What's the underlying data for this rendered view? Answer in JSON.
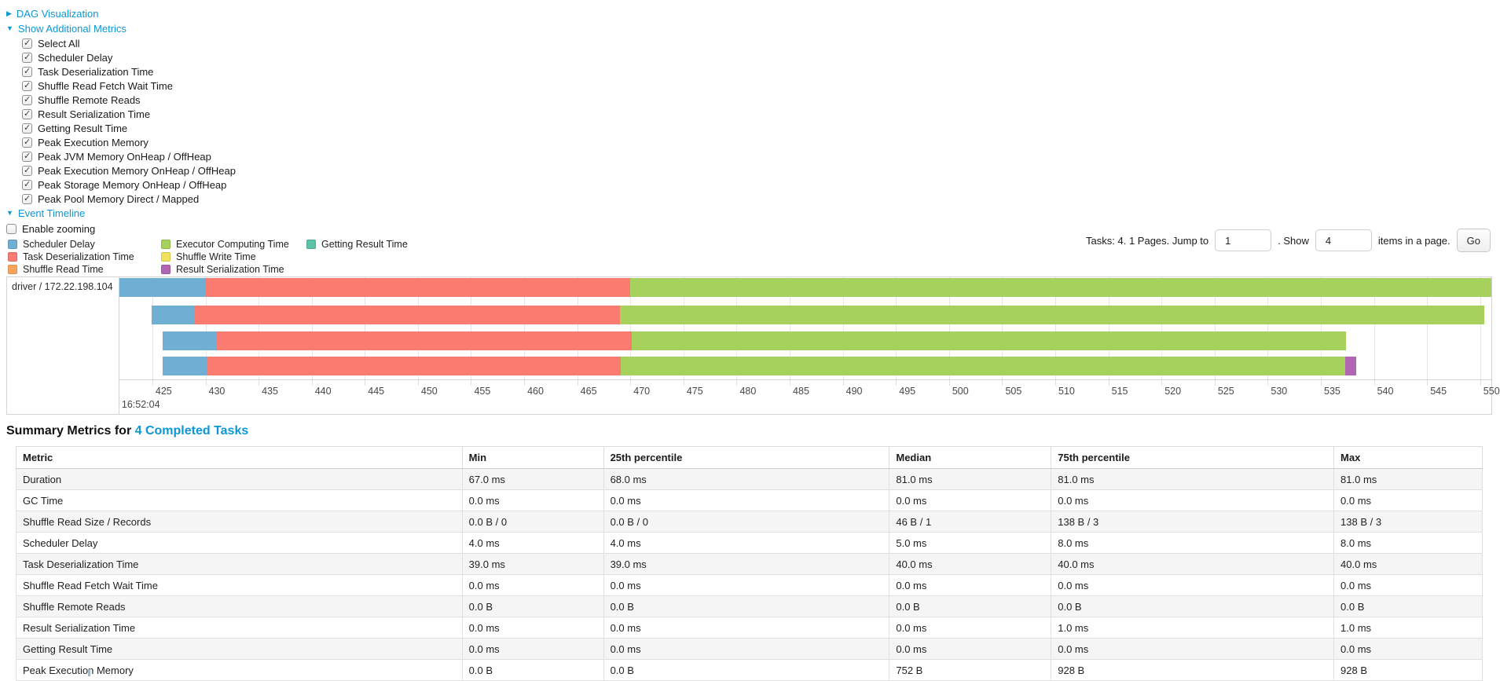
{
  "toggles": {
    "dag": {
      "label": "DAG Visualization",
      "expanded": false
    },
    "metrics": {
      "label": "Show Additional Metrics",
      "expanded": true
    },
    "timeline": {
      "label": "Event Timeline",
      "expanded": true
    }
  },
  "metric_checkboxes": [
    "Select All",
    "Scheduler Delay",
    "Task Deserialization Time",
    "Shuffle Read Fetch Wait Time",
    "Shuffle Remote Reads",
    "Result Serialization Time",
    "Getting Result Time",
    "Peak Execution Memory",
    "Peak JVM Memory OnHeap / OffHeap",
    "Peak Execution Memory OnHeap / OffHeap",
    "Peak Storage Memory OnHeap / OffHeap",
    "Peak Pool Memory Direct / Mapped"
  ],
  "enable_zooming_label": "Enable zooming",
  "legend": {
    "columns": [
      [
        {
          "label": "Scheduler Delay",
          "key": "scheduler_delay"
        },
        {
          "label": "Task Deserialization Time",
          "key": "task_deserialization"
        },
        {
          "label": "Shuffle Read Time",
          "key": "shuffle_read"
        }
      ],
      [
        {
          "label": "Executor Computing Time",
          "key": "executor_computing"
        },
        {
          "label": "Shuffle Write Time",
          "key": "shuffle_write"
        },
        {
          "label": "Result Serialization Time",
          "key": "result_serialization"
        }
      ],
      [
        {
          "label": "Getting Result Time",
          "key": "getting_result"
        }
      ]
    ]
  },
  "pagination": {
    "text_before": "Tasks: 4. 1 Pages. Jump to",
    "jump_value": "1",
    "text_mid": ". Show",
    "show_value": "4",
    "text_after": "items in a page.",
    "go_label": "Go"
  },
  "timeline": {
    "group_label": "driver / 172.22.198.104",
    "start_label": "16:52:04",
    "axis": {
      "min": 421.9,
      "max": 551.05,
      "ticks": [
        425,
        430,
        435,
        440,
        445,
        450,
        455,
        460,
        465,
        470,
        475,
        480,
        485,
        490,
        495,
        500,
        505,
        510,
        515,
        520,
        525,
        530,
        535,
        540,
        545,
        550
      ]
    },
    "tasks": [
      {
        "segments": [
          {
            "type": "scheduler_delay",
            "start": 421.9,
            "end": 430.0
          },
          {
            "type": "task_deserialization",
            "start": 430.0,
            "end": 470.0
          },
          {
            "type": "executor_computing",
            "start": 470.0,
            "end": 551.05
          }
        ]
      },
      {
        "segments": [
          {
            "type": "scheduler_delay",
            "start": 424.9,
            "end": 429.0
          },
          {
            "type": "task_deserialization",
            "start": 429.0,
            "end": 469.0
          },
          {
            "type": "executor_computing",
            "start": 469.0,
            "end": 550.4
          }
        ]
      },
      {
        "segments": [
          {
            "type": "scheduler_delay",
            "start": 426.0,
            "end": 431.0
          },
          {
            "type": "task_deserialization",
            "start": 431.0,
            "end": 470.1
          },
          {
            "type": "executor_computing",
            "start": 470.1,
            "end": 537.4
          }
        ]
      },
      {
        "segments": [
          {
            "type": "scheduler_delay",
            "start": 426.0,
            "end": 430.1
          },
          {
            "type": "task_deserialization",
            "start": 430.1,
            "end": 469.1
          },
          {
            "type": "executor_computing",
            "start": 469.1,
            "end": 537.3
          },
          {
            "type": "result_serialization",
            "start": 537.3,
            "end": 538.3
          }
        ]
      }
    ]
  },
  "summary": {
    "title_prefix": "Summary Metrics for ",
    "title_link": "4 Completed Tasks"
  },
  "table": {
    "headers": [
      "Metric",
      "Min",
      "25th percentile",
      "Median",
      "75th percentile",
      "Max"
    ],
    "rows": [
      {
        "metric": "Duration",
        "values": [
          "67.0 ms",
          "68.0 ms",
          "81.0 ms",
          "81.0 ms",
          "81.0 ms"
        ]
      },
      {
        "metric": "GC Time",
        "values": [
          "0.0 ms",
          "0.0 ms",
          "0.0 ms",
          "0.0 ms",
          "0.0 ms"
        ]
      },
      {
        "metric": "Shuffle Read Size / Records",
        "values": [
          "0.0 B / 0",
          "0.0 B / 0",
          "46 B / 1",
          "138 B / 3",
          "138 B / 3"
        ]
      },
      {
        "metric": "Scheduler Delay",
        "values": [
          "4.0 ms",
          "4.0 ms",
          "5.0 ms",
          "8.0 ms",
          "8.0 ms"
        ]
      },
      {
        "metric": "Task Deserialization Time",
        "values": [
          "39.0 ms",
          "39.0 ms",
          "40.0 ms",
          "40.0 ms",
          "40.0 ms"
        ]
      },
      {
        "metric": "Shuffle Read Fetch Wait Time",
        "values": [
          "0.0 ms",
          "0.0 ms",
          "0.0 ms",
          "0.0 ms",
          "0.0 ms"
        ]
      },
      {
        "metric": "Shuffle Remote Reads",
        "values": [
          "0.0 B",
          "0.0 B",
          "0.0 B",
          "0.0 B",
          "0.0 B"
        ]
      },
      {
        "metric": "Result Serialization Time",
        "values": [
          "0.0 ms",
          "0.0 ms",
          "0.0 ms",
          "1.0 ms",
          "1.0 ms"
        ]
      },
      {
        "metric": "Getting Result Time",
        "values": [
          "0.0 ms",
          "0.0 ms",
          "0.0 ms",
          "0.0 ms",
          "0.0 ms"
        ]
      },
      {
        "metric": "Peak Execution Memory",
        "values": [
          "0.0 B",
          "0.0 B",
          "752 B",
          "928 B",
          "928 B"
        ]
      }
    ]
  },
  "colors": {
    "link": "#0b97d6",
    "scheduler_delay": "#6FAFD4",
    "task_deserialization": "#FA7B6F",
    "shuffle_read": "#F9A45C",
    "executor_computing": "#A6D15C",
    "shuffle_write": "#F2E25B",
    "result_serialization": "#B066B3",
    "getting_result": "#5CC2A8"
  }
}
